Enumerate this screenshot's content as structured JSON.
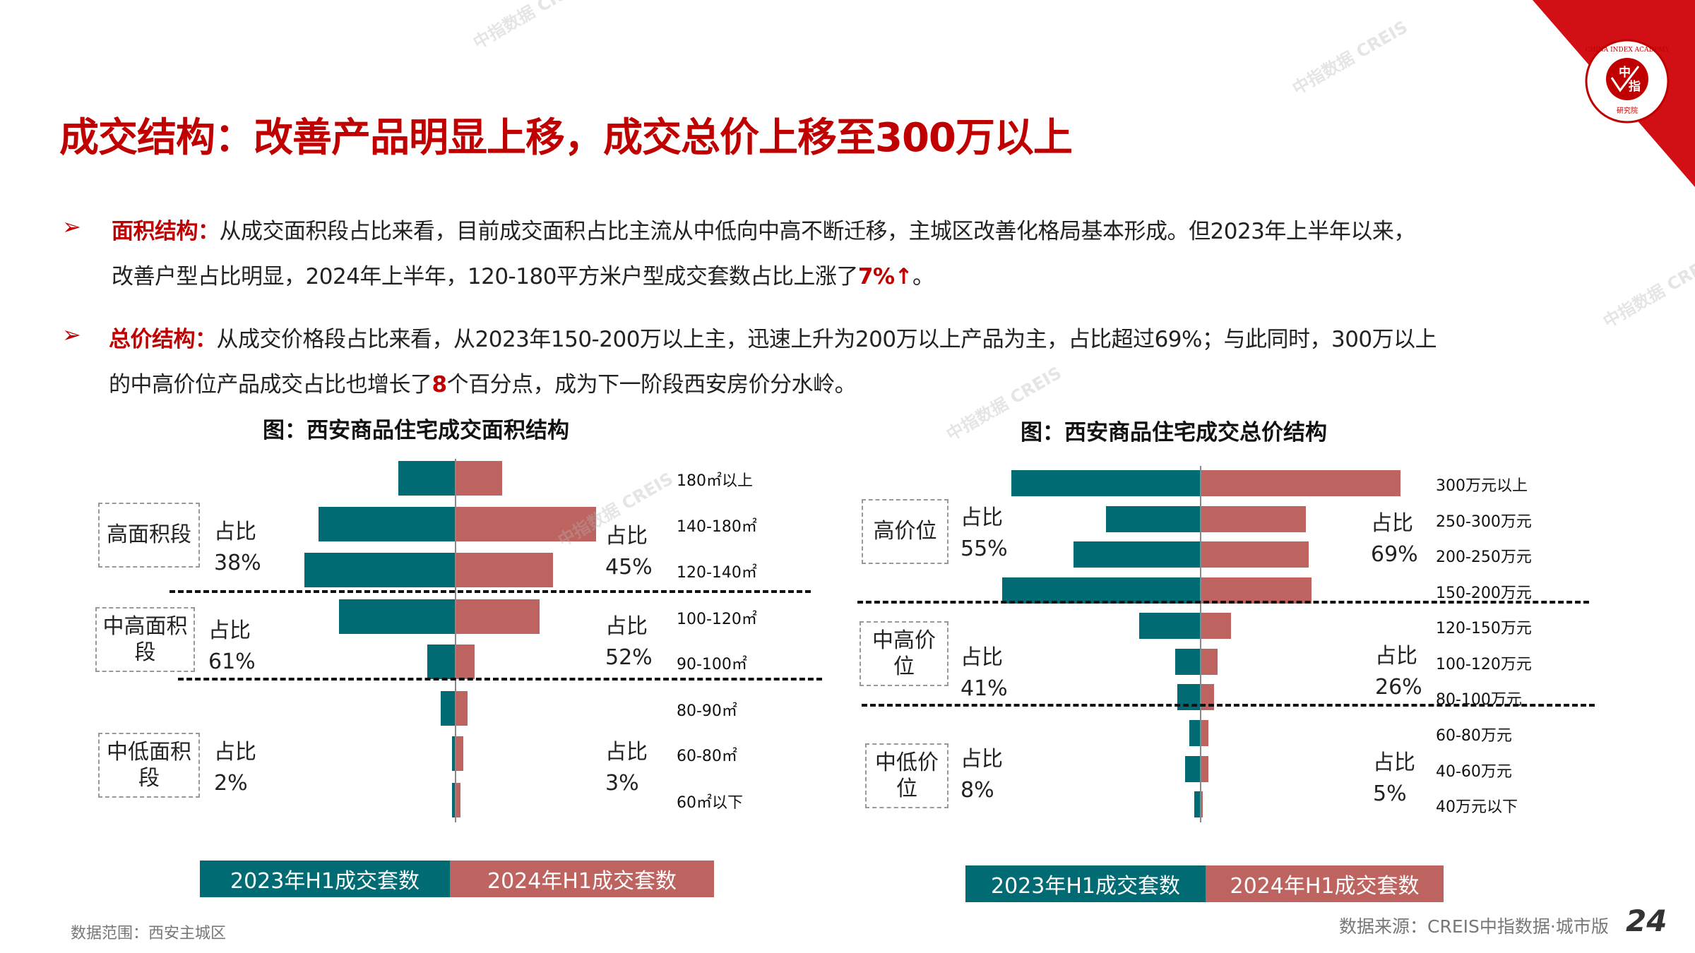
{
  "title": "成交结构：改善产品明显上移，成交总价上移至300万以上",
  "logo": {
    "text_outer": "CHINA INDEX ACADEMY",
    "text_center_1": "中",
    "text_center_2": "指",
    "text_bottom": "研究院"
  },
  "watermark": "中指数据 CREIS",
  "bullets": [
    {
      "label": "面积结构：",
      "line1": "从成交面积段占比来看，目前成交面积占比主流从中低向中高不断迁移，主城区改善化格局基本形成。但2023年上半年以来，",
      "line2_a": "改善户型占比明显，2024年上半年，120-180平方米户型成交套数占比上涨了",
      "highlight": "7%↑",
      "line2_b": "。"
    },
    {
      "label": "总价结构：",
      "line1": "从成交价格段占比来看，从2023年150-200万以上主，迅速上升为200万以上产品为主，占比超过69%；与此同时，300万以上",
      "line2_a": "的中高价位产品成交占比也增长了",
      "highlight": "8",
      "line2_b": "个百分点，成为下一阶段西安房价分水岭。"
    }
  ],
  "chart_data": [
    {
      "type": "bar",
      "orientation": "horizontal-butterfly",
      "title": "图：西安商品住宅成交面积结构",
      "unit": "成交套数 (relative, estimated)",
      "categories": [
        "180㎡以上",
        "140-180㎡",
        "120-140㎡",
        "100-120㎡",
        "90-100㎡",
        "80-90㎡",
        "60-80㎡",
        "60㎡以下"
      ],
      "series": [
        {
          "name": "2023年H1成交套数",
          "color": "#006B73",
          "values": [
            10.7,
            25.5,
            28.2,
            21.7,
            5.2,
            2.8,
            0.6,
            0.6
          ]
        },
        {
          "name": "2024年H1成交套数",
          "color": "#BD6460",
          "values": [
            8.7,
            26.2,
            18.1,
            15.6,
            3.5,
            2.2,
            1.4,
            0.9
          ]
        }
      ],
      "groups": [
        {
          "name": "高面积段",
          "share_label": "占比",
          "share_2023": "38%",
          "share_2024": "45%"
        },
        {
          "name": "中高面积段",
          "share_label": "占比",
          "share_2023": "61%",
          "share_2024": "52%"
        },
        {
          "name": "中低面积段",
          "share_label": "占比",
          "share_2023": "2%",
          "share_2024": "3%"
        }
      ]
    },
    {
      "type": "bar",
      "orientation": "horizontal-butterfly",
      "title": "图：西安商品住宅成交总价结构",
      "unit": "成交套数 (relative, estimated)",
      "categories": [
        "300万元以上",
        "250-300万元",
        "200-250万元",
        "150-200万元",
        "120-150万元",
        "100-120万元",
        "80-100万元",
        "60-80万元",
        "40-60万元",
        "40万元以下"
      ],
      "series": [
        {
          "name": "2023年H1成交套数",
          "color": "#006B73",
          "values": [
            35.2,
            17.6,
            23.7,
            37.0,
            11.4,
            4.8,
            4.3,
            2.1,
            2.9,
            1.2
          ]
        },
        {
          "name": "2024年H1成交套数",
          "color": "#BD6460",
          "values": [
            37.3,
            19.6,
            20.1,
            20.7,
            5.7,
            3.1,
            2.5,
            1.4,
            1.5,
            0.4
          ]
        }
      ],
      "groups": [
        {
          "name": "高价位",
          "share_label": "占比",
          "share_2023": "55%",
          "share_2024": "69%"
        },
        {
          "name": "中高价位",
          "share_label": "占比",
          "share_2023": "41%",
          "share_2024": "26%"
        },
        {
          "name": "中低价位",
          "share_label": "占比",
          "share_2023": "8%",
          "share_2024": "5%"
        }
      ]
    }
  ],
  "footer": {
    "scope": "数据范围：西安主城区",
    "source": "数据来源：CREIS中指数据·城市版",
    "page": "24"
  }
}
